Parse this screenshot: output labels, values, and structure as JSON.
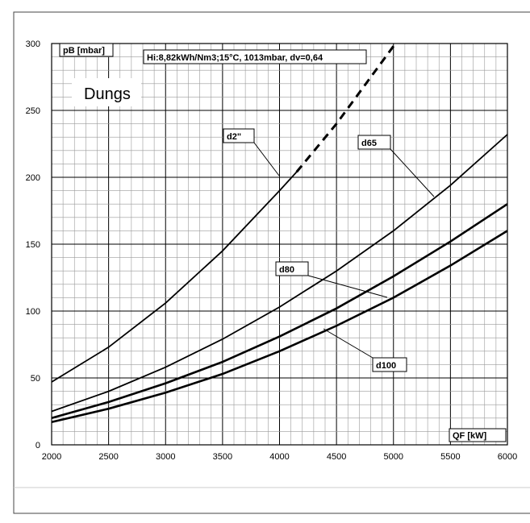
{
  "chart_data": {
    "type": "line",
    "xlabel": "QF [kW]",
    "ylabel": "pB [mbar]",
    "xlim": [
      2000,
      6000
    ],
    "ylim": [
      0,
      300
    ],
    "xticks": [
      "2000",
      "2500",
      "3000",
      "3500",
      "4000",
      "4500",
      "5000",
      "5500",
      "6000"
    ],
    "yticks": [
      "0",
      "50",
      "100",
      "150",
      "200",
      "250",
      "300"
    ],
    "grid": "major and minor",
    "brand": "Dungs",
    "conditions": "Hi:8,82kWh/Nm3;15°C,  1013mbar, dv=0,64",
    "series": [
      {
        "name": "d2\"",
        "x": [
          2000,
          2500,
          3000,
          3500,
          4000,
          4150,
          4500,
          5000
        ],
        "y": [
          47,
          73,
          106,
          145,
          190,
          204,
          240,
          298
        ],
        "dashed_from_x": 4150
      },
      {
        "name": "d65",
        "x": [
          2000,
          2500,
          3000,
          3500,
          4000,
          4500,
          5000,
          5500,
          6000
        ],
        "y": [
          25,
          40,
          58,
          79,
          103,
          130,
          160,
          194,
          232
        ]
      },
      {
        "name": "d80",
        "x": [
          2000,
          2500,
          3000,
          3500,
          4000,
          4500,
          5000,
          5500,
          6000
        ],
        "y": [
          20,
          32,
          46,
          62,
          81,
          102,
          126,
          152,
          180
        ]
      },
      {
        "name": "d100",
        "x": [
          2000,
          2500,
          3000,
          3500,
          4000,
          4500,
          5000,
          5500,
          6000
        ],
        "y": [
          17,
          27,
          39,
          53,
          70,
          89,
          110,
          134,
          160
        ]
      }
    ]
  }
}
